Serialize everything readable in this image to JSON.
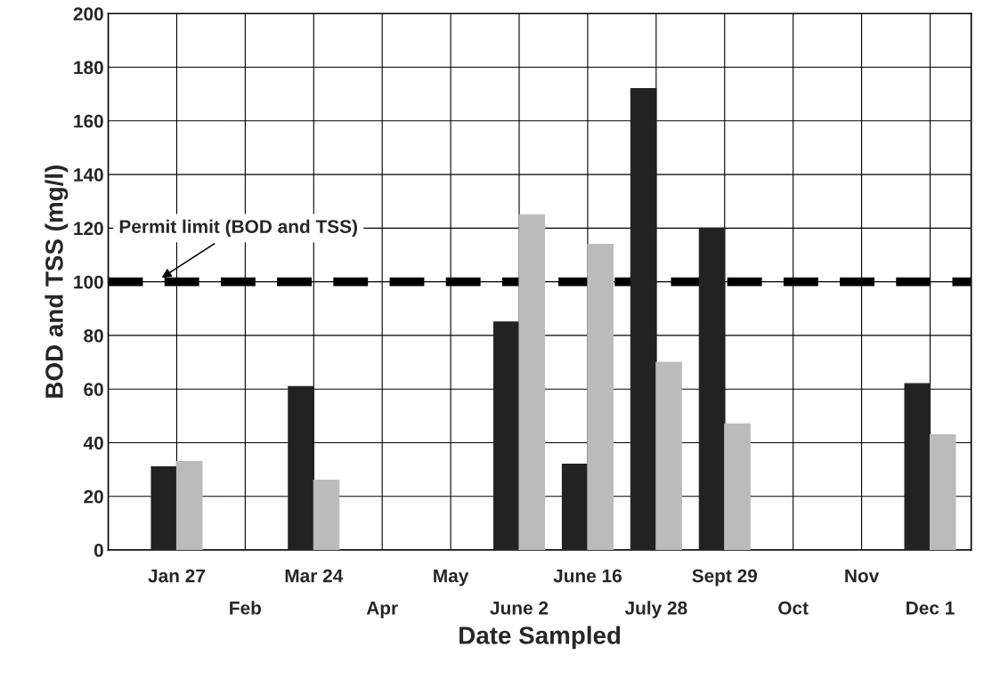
{
  "chart_data": {
    "type": "bar",
    "xlabel": "Date Sampled",
    "ylabel": "BOD and TSS (mg/l)",
    "categories": [
      "Jan 27",
      "Feb",
      "Mar 24",
      "Apr",
      "May",
      "June 2",
      "June 16",
      "July 28",
      "Sept 29",
      "Oct",
      "Nov",
      "Dec 1"
    ],
    "series": [
      {
        "color": "#222222",
        "values": [
          31,
          null,
          61,
          null,
          null,
          85,
          32,
          172,
          120,
          null,
          null,
          62
        ]
      },
      {
        "color": "#bbbbbb",
        "values": [
          33,
          null,
          26,
          null,
          null,
          125,
          114,
          70,
          47,
          null,
          null,
          43
        ]
      }
    ],
    "ylim": [
      0,
      200
    ],
    "yticks": [
      0,
      20,
      40,
      60,
      80,
      100,
      120,
      140,
      160,
      180,
      200
    ],
    "ref_lines": [
      {
        "axis": "y",
        "value": 100,
        "label": "Permit limit (BOD and TSS)",
        "color": "#000000",
        "line_style": "dashed"
      }
    ],
    "grid": true,
    "legend": false
  }
}
